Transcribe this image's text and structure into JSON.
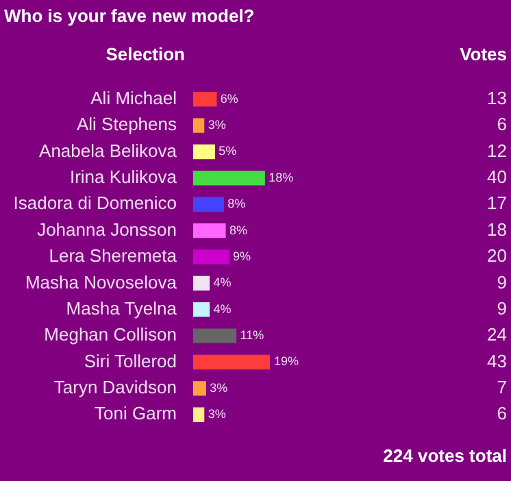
{
  "chart_data": {
    "type": "bar",
    "orientation": "horizontal",
    "title": "Who is your fave new model?",
    "ylabel": "Selection",
    "categories": [
      "Ali Michael",
      "Ali Stephens",
      "Anabela Belikova",
      "Irina Kulikova",
      "Isadora di Domenico",
      "Johanna Jonsson",
      "Lera Sheremeta",
      "Masha Novoselova",
      "Masha Tyelna",
      "Meghan Collison",
      "Siri Tollerod",
      "Taryn Davidson",
      "Toni Garm"
    ],
    "values": [
      13,
      6,
      12,
      40,
      17,
      18,
      20,
      9,
      9,
      24,
      43,
      7,
      6
    ],
    "colors": [
      "#ff3c3c",
      "#ffa040",
      "#ffff88",
      "#44dd44",
      "#4444ff",
      "#ff66ff",
      "#cc00cc",
      "#f0e4f0",
      "#c4f4ff",
      "#666666",
      "#ff3c3c",
      "#ffa040",
      "#ffee88"
    ],
    "data_labels": true,
    "annotations": [
      "Votes",
      {
        "text": "6%",
        "x": 13,
        "y": "Ali Michael"
      },
      {
        "text": "3%",
        "x": 6,
        "y": "Ali Stephens"
      },
      {
        "text": "5%",
        "x": 12,
        "y": "Anabela Belikova"
      },
      {
        "text": "18%",
        "x": 40,
        "y": "Irina Kulikova"
      },
      {
        "text": "8%",
        "x": 17,
        "y": "Isadora di Domenico"
      },
      {
        "text": "8%",
        "x": 18,
        "y": "Johanna Jonsson"
      },
      {
        "text": "9%",
        "x": 20,
        "y": "Lera Sheremeta"
      },
      {
        "text": "4%",
        "x": 9,
        "y": "Masha Novoselova"
      },
      {
        "text": "4%",
        "x": 9,
        "y": "Masha Tyelna"
      },
      {
        "text": "11%",
        "x": 24,
        "y": "Meghan Collison"
      },
      {
        "text": "19%",
        "x": 43,
        "y": "Siri Tollerod"
      },
      {
        "text": "3%",
        "x": 7,
        "y": "Taryn Davidson"
      },
      {
        "text": "3%",
        "x": 6,
        "y": "Toni Garm"
      },
      "224 votes total"
    ]
  }
}
